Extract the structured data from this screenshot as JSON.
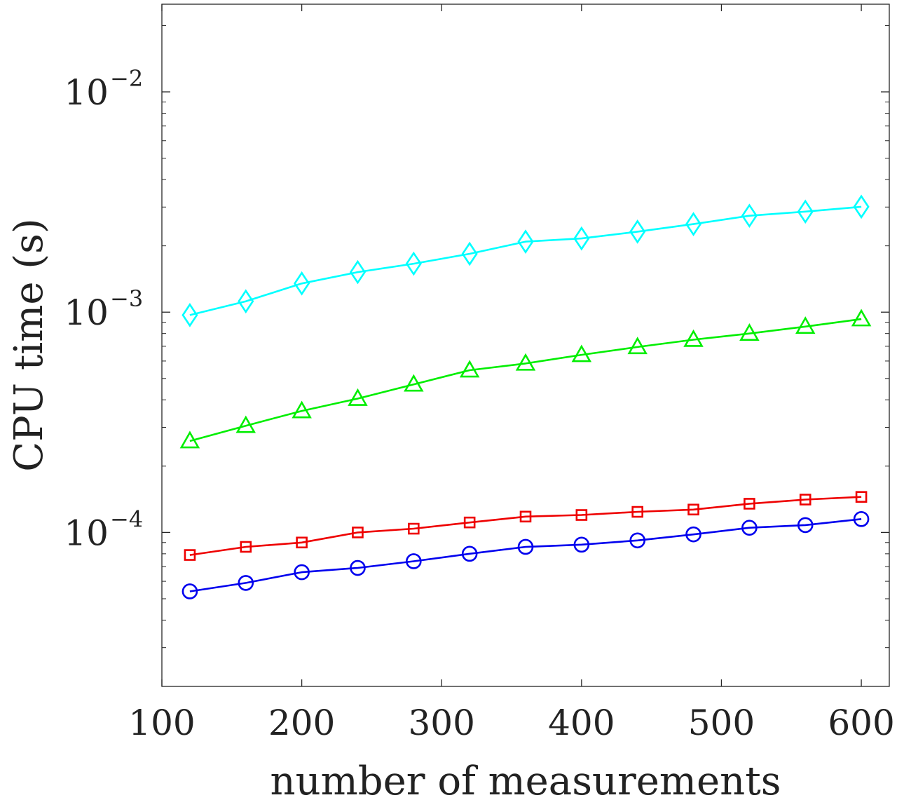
{
  "chart_data": {
    "type": "line",
    "title": "",
    "xlabel": "number of measurements",
    "ylabel": "CPU time (s)",
    "xscale": "linear",
    "yscale": "log",
    "xlim": [
      100,
      620
    ],
    "ylim": [
      2e-05,
      0.025
    ],
    "grid": false,
    "legend": "none",
    "x_ticks": [
      100,
      200,
      300,
      400,
      500,
      600
    ],
    "x_tick_labels": [
      "100",
      "200",
      "300",
      "400",
      "500",
      "600"
    ],
    "y_ticks": [
      {
        "value": 0.0001,
        "base": "10",
        "exp": "−4"
      },
      {
        "value": 0.001,
        "base": "10",
        "exp": "−3"
      },
      {
        "value": 0.01,
        "base": "10",
        "exp": "−2"
      }
    ],
    "x": [
      120,
      160,
      200,
      240,
      280,
      320,
      360,
      400,
      440,
      480,
      520,
      560,
      600
    ],
    "series": [
      {
        "name": "cyan-diamond",
        "color": "#00ffff",
        "marker": "diamond",
        "values": [
          0.00097,
          0.00112,
          0.00135,
          0.00152,
          0.00166,
          0.00184,
          0.00209,
          0.00216,
          0.00232,
          0.00251,
          0.00274,
          0.00286,
          0.00301
        ]
      },
      {
        "name": "green-triangle",
        "color": "#00ee00",
        "marker": "triangle",
        "values": [
          0.00026,
          0.000305,
          0.000356,
          0.000405,
          0.00047,
          0.000545,
          0.000585,
          0.00064,
          0.000695,
          0.00075,
          0.0008,
          0.00086,
          0.00093
        ]
      },
      {
        "name": "red-square",
        "color": "#ee0000",
        "marker": "square",
        "values": [
          7.9e-05,
          8.6e-05,
          9e-05,
          0.0001,
          0.000104,
          0.000111,
          0.000118,
          0.00012,
          0.000124,
          0.000127,
          0.000135,
          0.000141,
          0.000145
        ]
      },
      {
        "name": "blue-circle",
        "color": "#0000ee",
        "marker": "circle",
        "values": [
          5.4e-05,
          5.9e-05,
          6.6e-05,
          6.9e-05,
          7.4e-05,
          8e-05,
          8.6e-05,
          8.8e-05,
          9.2e-05,
          9.8e-05,
          0.000105,
          0.000108,
          0.000115
        ]
      }
    ]
  }
}
